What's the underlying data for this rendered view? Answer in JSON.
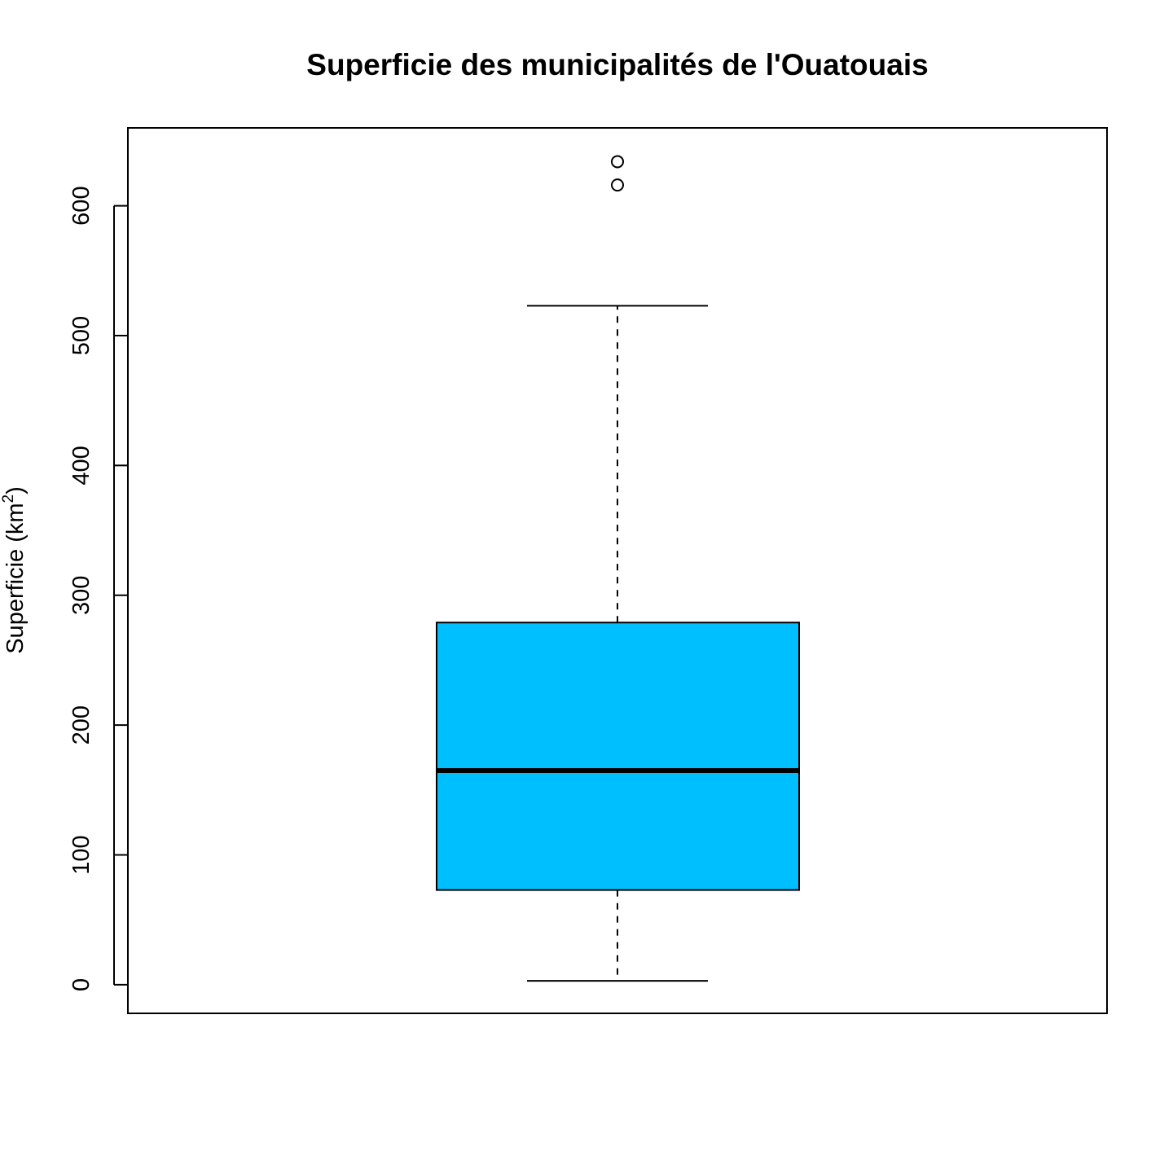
{
  "chart_data": {
    "type": "boxplot",
    "title": "Superficie des municipalités de l'Ouatouais",
    "ylabel": {
      "prefix": "Superficie (km",
      "superscript": "2",
      "suffix": ")"
    },
    "xlabel": "",
    "ylim": [
      -22,
      660
    ],
    "y_ticks": [
      0,
      100,
      200,
      300,
      400,
      500,
      600
    ],
    "y_tick_labels": [
      "0",
      "100",
      "200",
      "300",
      "400",
      "500",
      "600"
    ],
    "grid": false,
    "series": [
      {
        "whisker_low": 3,
        "q1": 73,
        "median": 165,
        "q3": 279,
        "whisker_high": 523,
        "outliers": [
          616,
          634
        ]
      }
    ],
    "colors": {
      "box_fill": "#00bfff",
      "stroke": "#000000",
      "background": "#ffffff"
    }
  }
}
